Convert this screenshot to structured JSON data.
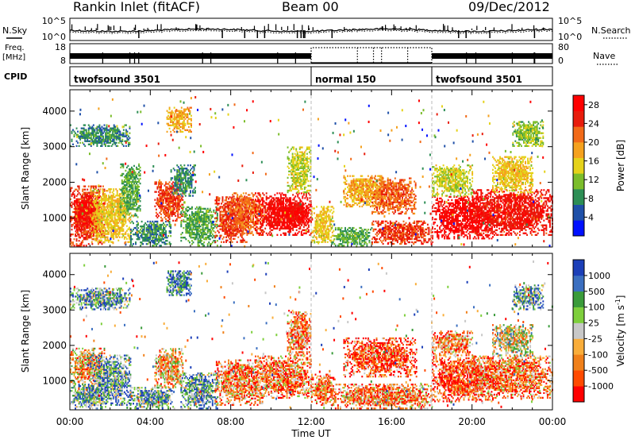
{
  "header": {
    "title": "Rankin Inlet (fitACF)",
    "beam": "Beam 00",
    "date": "09/Dec/2012"
  },
  "aux": {
    "nsky_label": "N.Sky",
    "nsky_ticks": [
      "10^5",
      "10^0"
    ],
    "nsearch_label": "N.Search",
    "nsearch_ticks": [
      "10^5",
      "10^0"
    ],
    "freq_label": "Freq.",
    "freq_unit": "[MHz]",
    "freq_ticks": [
      "18",
      "8"
    ],
    "nave_label": "Nave",
    "nave_ticks": [
      "80",
      "0"
    ],
    "cpid_label": "CPID",
    "modes": [
      {
        "name": "twofsound 3501",
        "start_hour": 0,
        "end_hour": 12
      },
      {
        "name": "normal 150",
        "start_hour": 12,
        "end_hour": 18
      },
      {
        "name": "twofsound 3501",
        "start_hour": 18,
        "end_hour": 24
      }
    ]
  },
  "colors": {
    "power": [
      "#0010ff",
      "#1f50a8",
      "#2d8e55",
      "#7bbd2b",
      "#e5d21a",
      "#f5a11e",
      "#f26a18",
      "#e81c0c",
      "#ff0000"
    ],
    "velocity": [
      "#ff0000",
      "#ff4a00",
      "#f0801a",
      "#f9ad3a",
      "#c8c8c8",
      "#7ecf3c",
      "#3a9b3a",
      "#3b6fc0",
      "#1c3fb8"
    ]
  },
  "chart_data": [
    {
      "type": "heatmap",
      "name": "power",
      "xlabel": "Time UT",
      "ylabel": "Slant Range [km]",
      "x_range_hours": [
        0,
        24
      ],
      "ylim": [
        180,
        4600
      ],
      "x_ticks": [
        "00:00",
        "04:00",
        "08:00",
        "12:00",
        "16:00",
        "20:00",
        "00:00"
      ],
      "y_ticks": [
        1000,
        2000,
        3000,
        4000
      ],
      "colorbar": {
        "label": "Power [dB]",
        "ticks": [
          4,
          8,
          12,
          16,
          20,
          24,
          28
        ],
        "range": [
          0,
          30
        ]
      },
      "dashed_lines_hours": [
        12,
        18
      ],
      "blobs": [
        {
          "t0": 0.0,
          "t1": 1.7,
          "r0": 200,
          "r1": 1900,
          "val": 24
        },
        {
          "t0": 0.2,
          "t1": 1.5,
          "r0": 600,
          "r1": 1600,
          "val": 27
        },
        {
          "t0": 1.0,
          "t1": 3.0,
          "r0": 300,
          "r1": 1800,
          "val": 16
        },
        {
          "t0": 2.5,
          "t1": 3.5,
          "r0": 1000,
          "r1": 2500,
          "val": 10
        },
        {
          "t0": 3.0,
          "t1": 5.0,
          "r0": 200,
          "r1": 900,
          "val": 8
        },
        {
          "t0": 4.2,
          "t1": 5.6,
          "r0": 900,
          "r1": 2000,
          "val": 24
        },
        {
          "t0": 5.0,
          "t1": 6.2,
          "r0": 1600,
          "r1": 2500,
          "val": 8
        },
        {
          "t0": 5.5,
          "t1": 7.3,
          "r0": 200,
          "r1": 1300,
          "val": 10
        },
        {
          "t0": 4.8,
          "t1": 6.0,
          "r0": 3400,
          "r1": 4100,
          "val": 18
        },
        {
          "t0": 7.2,
          "t1": 8.8,
          "r0": 300,
          "r1": 1600,
          "val": 24
        },
        {
          "t0": 8.0,
          "t1": 9.6,
          "r0": 500,
          "r1": 1700,
          "val": 22
        },
        {
          "t0": 9.2,
          "t1": 12.0,
          "r0": 500,
          "r1": 1700,
          "val": 27
        },
        {
          "t0": 10.3,
          "t1": 12.0,
          "r0": 800,
          "r1": 1400,
          "val": 28
        },
        {
          "t0": 10.8,
          "t1": 12.0,
          "r0": 1700,
          "r1": 3000,
          "val": 14
        },
        {
          "t0": 12.0,
          "t1": 13.1,
          "r0": 300,
          "r1": 1300,
          "val": 16
        },
        {
          "t0": 13.6,
          "t1": 15.6,
          "r0": 1300,
          "r1": 2200,
          "val": 18
        },
        {
          "t0": 15.0,
          "t1": 17.2,
          "r0": 1100,
          "r1": 2100,
          "val": 22
        },
        {
          "t0": 13.0,
          "t1": 15.0,
          "r0": 200,
          "r1": 700,
          "val": 10
        },
        {
          "t0": 15.0,
          "t1": 18.0,
          "r0": 250,
          "r1": 900,
          "val": 24
        },
        {
          "t0": 18.0,
          "t1": 21.0,
          "r0": 400,
          "r1": 1600,
          "val": 28
        },
        {
          "t0": 18.0,
          "t1": 20.0,
          "r0": 1600,
          "r1": 2500,
          "val": 14
        },
        {
          "t0": 20.0,
          "t1": 24.0,
          "r0": 500,
          "r1": 1800,
          "val": 26
        },
        {
          "t0": 21.0,
          "t1": 23.0,
          "r0": 1700,
          "r1": 2700,
          "val": 16
        },
        {
          "t0": 22.0,
          "t1": 23.5,
          "r0": 3000,
          "r1": 3700,
          "val": 12
        },
        {
          "t0": 0.0,
          "t1": 3.0,
          "r0": 3000,
          "r1": 3600,
          "val": 8
        }
      ]
    },
    {
      "type": "heatmap",
      "name": "velocity",
      "xlabel": "Time UT",
      "ylabel": "Slant Range [km]",
      "x_range_hours": [
        0,
        24
      ],
      "ylim": [
        180,
        4600
      ],
      "x_ticks": [
        "00:00",
        "04:00",
        "08:00",
        "12:00",
        "16:00",
        "20:00",
        "00:00"
      ],
      "y_ticks": [
        1000,
        2000,
        3000,
        4000
      ],
      "colorbar": {
        "label": "Velocity [m s",
        "label_sup": "-1",
        "label_end": "]",
        "ticks": [
          "-1000",
          "-500",
          "-100",
          "-25",
          "25",
          "100",
          "500",
          "1000"
        ]
      },
      "dashed_lines_hours": [
        12,
        18
      ],
      "blobs": [
        {
          "t0": 0.0,
          "t1": 1.7,
          "r0": 900,
          "r1": 1900,
          "val": 3
        },
        {
          "t0": 0.0,
          "t1": 1.8,
          "r0": 200,
          "r1": 900,
          "val": 6
        },
        {
          "t0": 1.0,
          "t1": 3.0,
          "r0": 300,
          "r1": 1700,
          "val": 6
        },
        {
          "t0": 3.0,
          "t1": 5.2,
          "r0": 200,
          "r1": 800,
          "val": 6
        },
        {
          "t0": 4.2,
          "t1": 5.6,
          "r0": 800,
          "r1": 1900,
          "val": 3
        },
        {
          "t0": 5.5,
          "t1": 7.3,
          "r0": 200,
          "r1": 1200,
          "val": 6
        },
        {
          "t0": 4.8,
          "t1": 6.0,
          "r0": 3400,
          "r1": 4100,
          "val": 7
        },
        {
          "t0": 7.2,
          "t1": 9.6,
          "r0": 300,
          "r1": 1600,
          "val": 2
        },
        {
          "t0": 9.2,
          "t1": 12.0,
          "r0": 500,
          "r1": 1700,
          "val": 2
        },
        {
          "t0": 10.8,
          "t1": 12.0,
          "r0": 1700,
          "r1": 3000,
          "val": 2
        },
        {
          "t0": 12.0,
          "t1": 13.2,
          "r0": 300,
          "r1": 1200,
          "val": 2
        },
        {
          "t0": 13.6,
          "t1": 17.2,
          "r0": 1100,
          "r1": 2200,
          "val": 1
        },
        {
          "t0": 13.0,
          "t1": 18.0,
          "r0": 200,
          "r1": 900,
          "val": 2
        },
        {
          "t0": 18.0,
          "t1": 21.0,
          "r0": 400,
          "r1": 1700,
          "val": 1
        },
        {
          "t0": 18.0,
          "t1": 20.0,
          "r0": 1700,
          "r1": 2400,
          "val": 2
        },
        {
          "t0": 20.0,
          "t1": 24.0,
          "r0": 500,
          "r1": 1700,
          "val": 2
        },
        {
          "t0": 21.0,
          "t1": 23.0,
          "r0": 1700,
          "r1": 2600,
          "val": 4
        },
        {
          "t0": 22.0,
          "t1": 23.5,
          "r0": 3000,
          "r1": 3700,
          "val": 6
        },
        {
          "t0": 0.0,
          "t1": 3.0,
          "r0": 3000,
          "r1": 3600,
          "val": 6
        }
      ]
    }
  ]
}
